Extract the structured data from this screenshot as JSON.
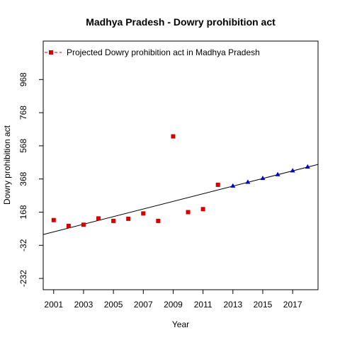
{
  "chart_data": {
    "type": "scatter",
    "title": "Madhya Pradesh  -  Dowry prohibition act",
    "xlabel": "Year",
    "ylabel": "Dowry prohibition act",
    "xlim": [
      2000.3,
      2018.7
    ],
    "ylim": [
      -300,
      1200
    ],
    "x_ticks": [
      2001,
      2003,
      2005,
      2007,
      2009,
      2011,
      2013,
      2015,
      2017
    ],
    "y_ticks": [
      -232,
      -32,
      168,
      368,
      568,
      768,
      968
    ],
    "grid": false,
    "legend": {
      "placement": "top-left",
      "entries": [
        {
          "label": "Projected  Dowry prohibition act  in  Madhya Pradesh",
          "marker": "square",
          "color": "#d40000",
          "line": "dashed"
        }
      ]
    },
    "series": [
      {
        "marker": "square",
        "color": "#d40000",
        "points": [
          {
            "x": 2001,
            "y": 120
          },
          {
            "x": 2002,
            "y": 85
          },
          {
            "x": 2003,
            "y": 92
          },
          {
            "x": 2004,
            "y": 130
          },
          {
            "x": 2005,
            "y": 115
          },
          {
            "x": 2006,
            "y": 128
          },
          {
            "x": 2007,
            "y": 160
          },
          {
            "x": 2008,
            "y": 115
          },
          {
            "x": 2009,
            "y": 625
          },
          {
            "x": 2010,
            "y": 168
          },
          {
            "x": 2011,
            "y": 186
          },
          {
            "x": 2012,
            "y": 333
          }
        ]
      },
      {
        "marker": "triangle",
        "color": "#0000cc",
        "points": [
          {
            "x": 2013,
            "y": 327
          },
          {
            "x": 2014,
            "y": 350
          },
          {
            "x": 2015,
            "y": 373
          },
          {
            "x": 2016,
            "y": 396
          },
          {
            "x": 2017,
            "y": 419
          },
          {
            "x": 2018,
            "y": 442
          }
        ]
      }
    ],
    "trend_line": {
      "color": "#000000",
      "points": [
        {
          "x": 2000.3,
          "y": 33
        },
        {
          "x": 2018.7,
          "y": 456
        }
      ]
    }
  }
}
